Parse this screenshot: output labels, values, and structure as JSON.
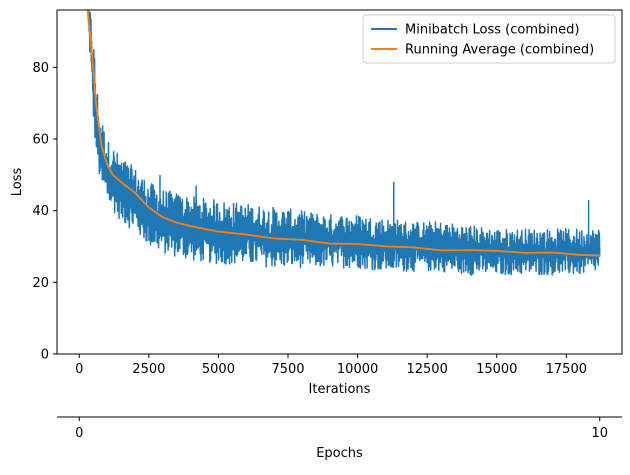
{
  "chart_data": {
    "type": "line",
    "title": "",
    "xlabel": "Iterations",
    "ylabel": "Loss",
    "secondary_xlabel": "Epochs",
    "xlim": [
      -800,
      19500
    ],
    "ylim": [
      0,
      96
    ],
    "xticks": [
      0,
      2500,
      5000,
      7500,
      10000,
      12500,
      15000,
      17500
    ],
    "yticks": [
      0,
      20,
      40,
      60,
      80
    ],
    "epoch_ticks": [
      0,
      10
    ],
    "epoch_iterations": [
      0,
      18700
    ],
    "legend_position": "top-right",
    "series": [
      {
        "name": "Minibatch Loss (combined)",
        "color": "#1f77b4",
        "kind": "band",
        "x": [
          300,
          400,
          500,
          600,
          700,
          800,
          1000,
          1200,
          1500,
          2000,
          2500,
          3000,
          3500,
          4000,
          5000,
          6000,
          7000,
          8000,
          9000,
          10000,
          11000,
          12000,
          13000,
          14000,
          15000,
          16000,
          17000,
          18000,
          18700
        ],
        "upper": [
          96,
          96,
          90,
          78,
          70,
          66,
          60,
          58,
          55,
          52,
          48,
          46,
          45,
          44,
          43,
          42,
          41,
          40,
          39,
          39,
          38,
          37,
          37,
          36,
          35,
          35,
          35,
          35,
          35
        ],
        "lower": [
          96,
          80,
          65,
          56,
          50,
          45,
          42,
          40,
          37,
          34,
          30,
          28,
          27,
          26,
          25,
          25,
          24,
          24,
          24,
          24,
          23,
          23,
          23,
          22,
          22,
          22,
          22,
          22,
          23
        ],
        "spikes": [
          {
            "x": 11300,
            "y": 48
          },
          {
            "x": 18300,
            "y": 43
          },
          {
            "x": 2900,
            "y": 50
          },
          {
            "x": 4200,
            "y": 47
          }
        ]
      },
      {
        "name": "Running Average (combined)",
        "color": "#ff7f0e",
        "kind": "line",
        "x": [
          300,
          500,
          600,
          700,
          800,
          1000,
          1200,
          1500,
          2000,
          2500,
          3000,
          3500,
          4000,
          5000,
          6000,
          7000,
          8000,
          9000,
          10000,
          11000,
          12000,
          13000,
          14000,
          15000,
          16000,
          17000,
          18000,
          18700
        ],
        "y": [
          96,
          80,
          70,
          64,
          58,
          53,
          50,
          48,
          45,
          41,
          38,
          36.5,
          35.5,
          34.2,
          33.5,
          32.4,
          31.6,
          31,
          30.4,
          30,
          29.6,
          29.2,
          28.9,
          28.6,
          28.3,
          28.1,
          27.9,
          27.6
        ]
      }
    ]
  }
}
